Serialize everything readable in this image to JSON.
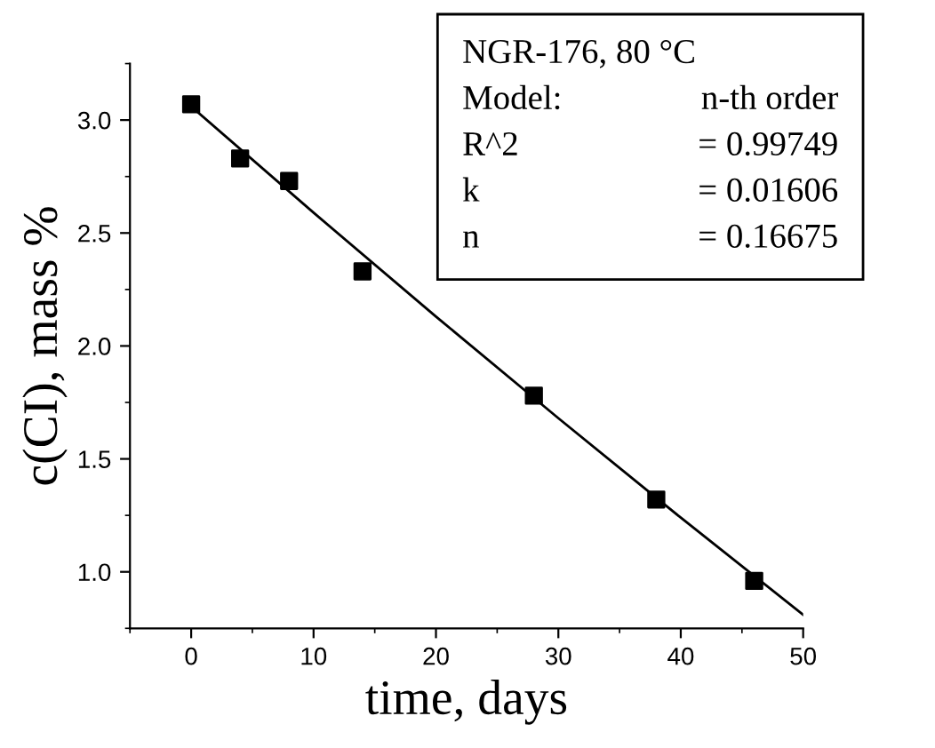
{
  "chart_data": {
    "type": "scatter",
    "xlabel": "time, days",
    "ylabel": "c(CI), mass %",
    "xlim": [
      -5,
      50
    ],
    "xticks": [
      0,
      10,
      20,
      30,
      40,
      50
    ],
    "ylim": [
      0.75,
      3.25
    ],
    "yticks": [
      {
        "value": 1.0,
        "label": "1.0"
      },
      {
        "value": 1.5,
        "label": "1.5"
      },
      {
        "value": 2.0,
        "label": "2.0"
      },
      {
        "value": 2.5,
        "label": "2.5"
      },
      {
        "value": 3.0,
        "label": "3.0"
      }
    ],
    "marker": "square",
    "grid": false,
    "series": [
      {
        "color": "#000000",
        "x": [
          0,
          4,
          8,
          14,
          28,
          38,
          46
        ],
        "values": [
          3.07,
          2.83,
          2.73,
          2.33,
          1.78,
          1.32,
          0.96
        ]
      },
      {
        "type": "line",
        "color": "#000000",
        "marker": "none",
        "line_style": "solid",
        "x": [
          0,
          10,
          20,
          30,
          40,
          50
        ],
        "values": [
          3.06,
          2.59,
          2.13,
          1.68,
          1.24,
          0.81
        ]
      }
    ],
    "annotations": [
      "NGR-176, 80 °C",
      "Model:",
      "n-th order",
      "R^2",
      "= 0.99749",
      "k",
      "= 0.01606",
      "n",
      "= 0.16675"
    ]
  }
}
